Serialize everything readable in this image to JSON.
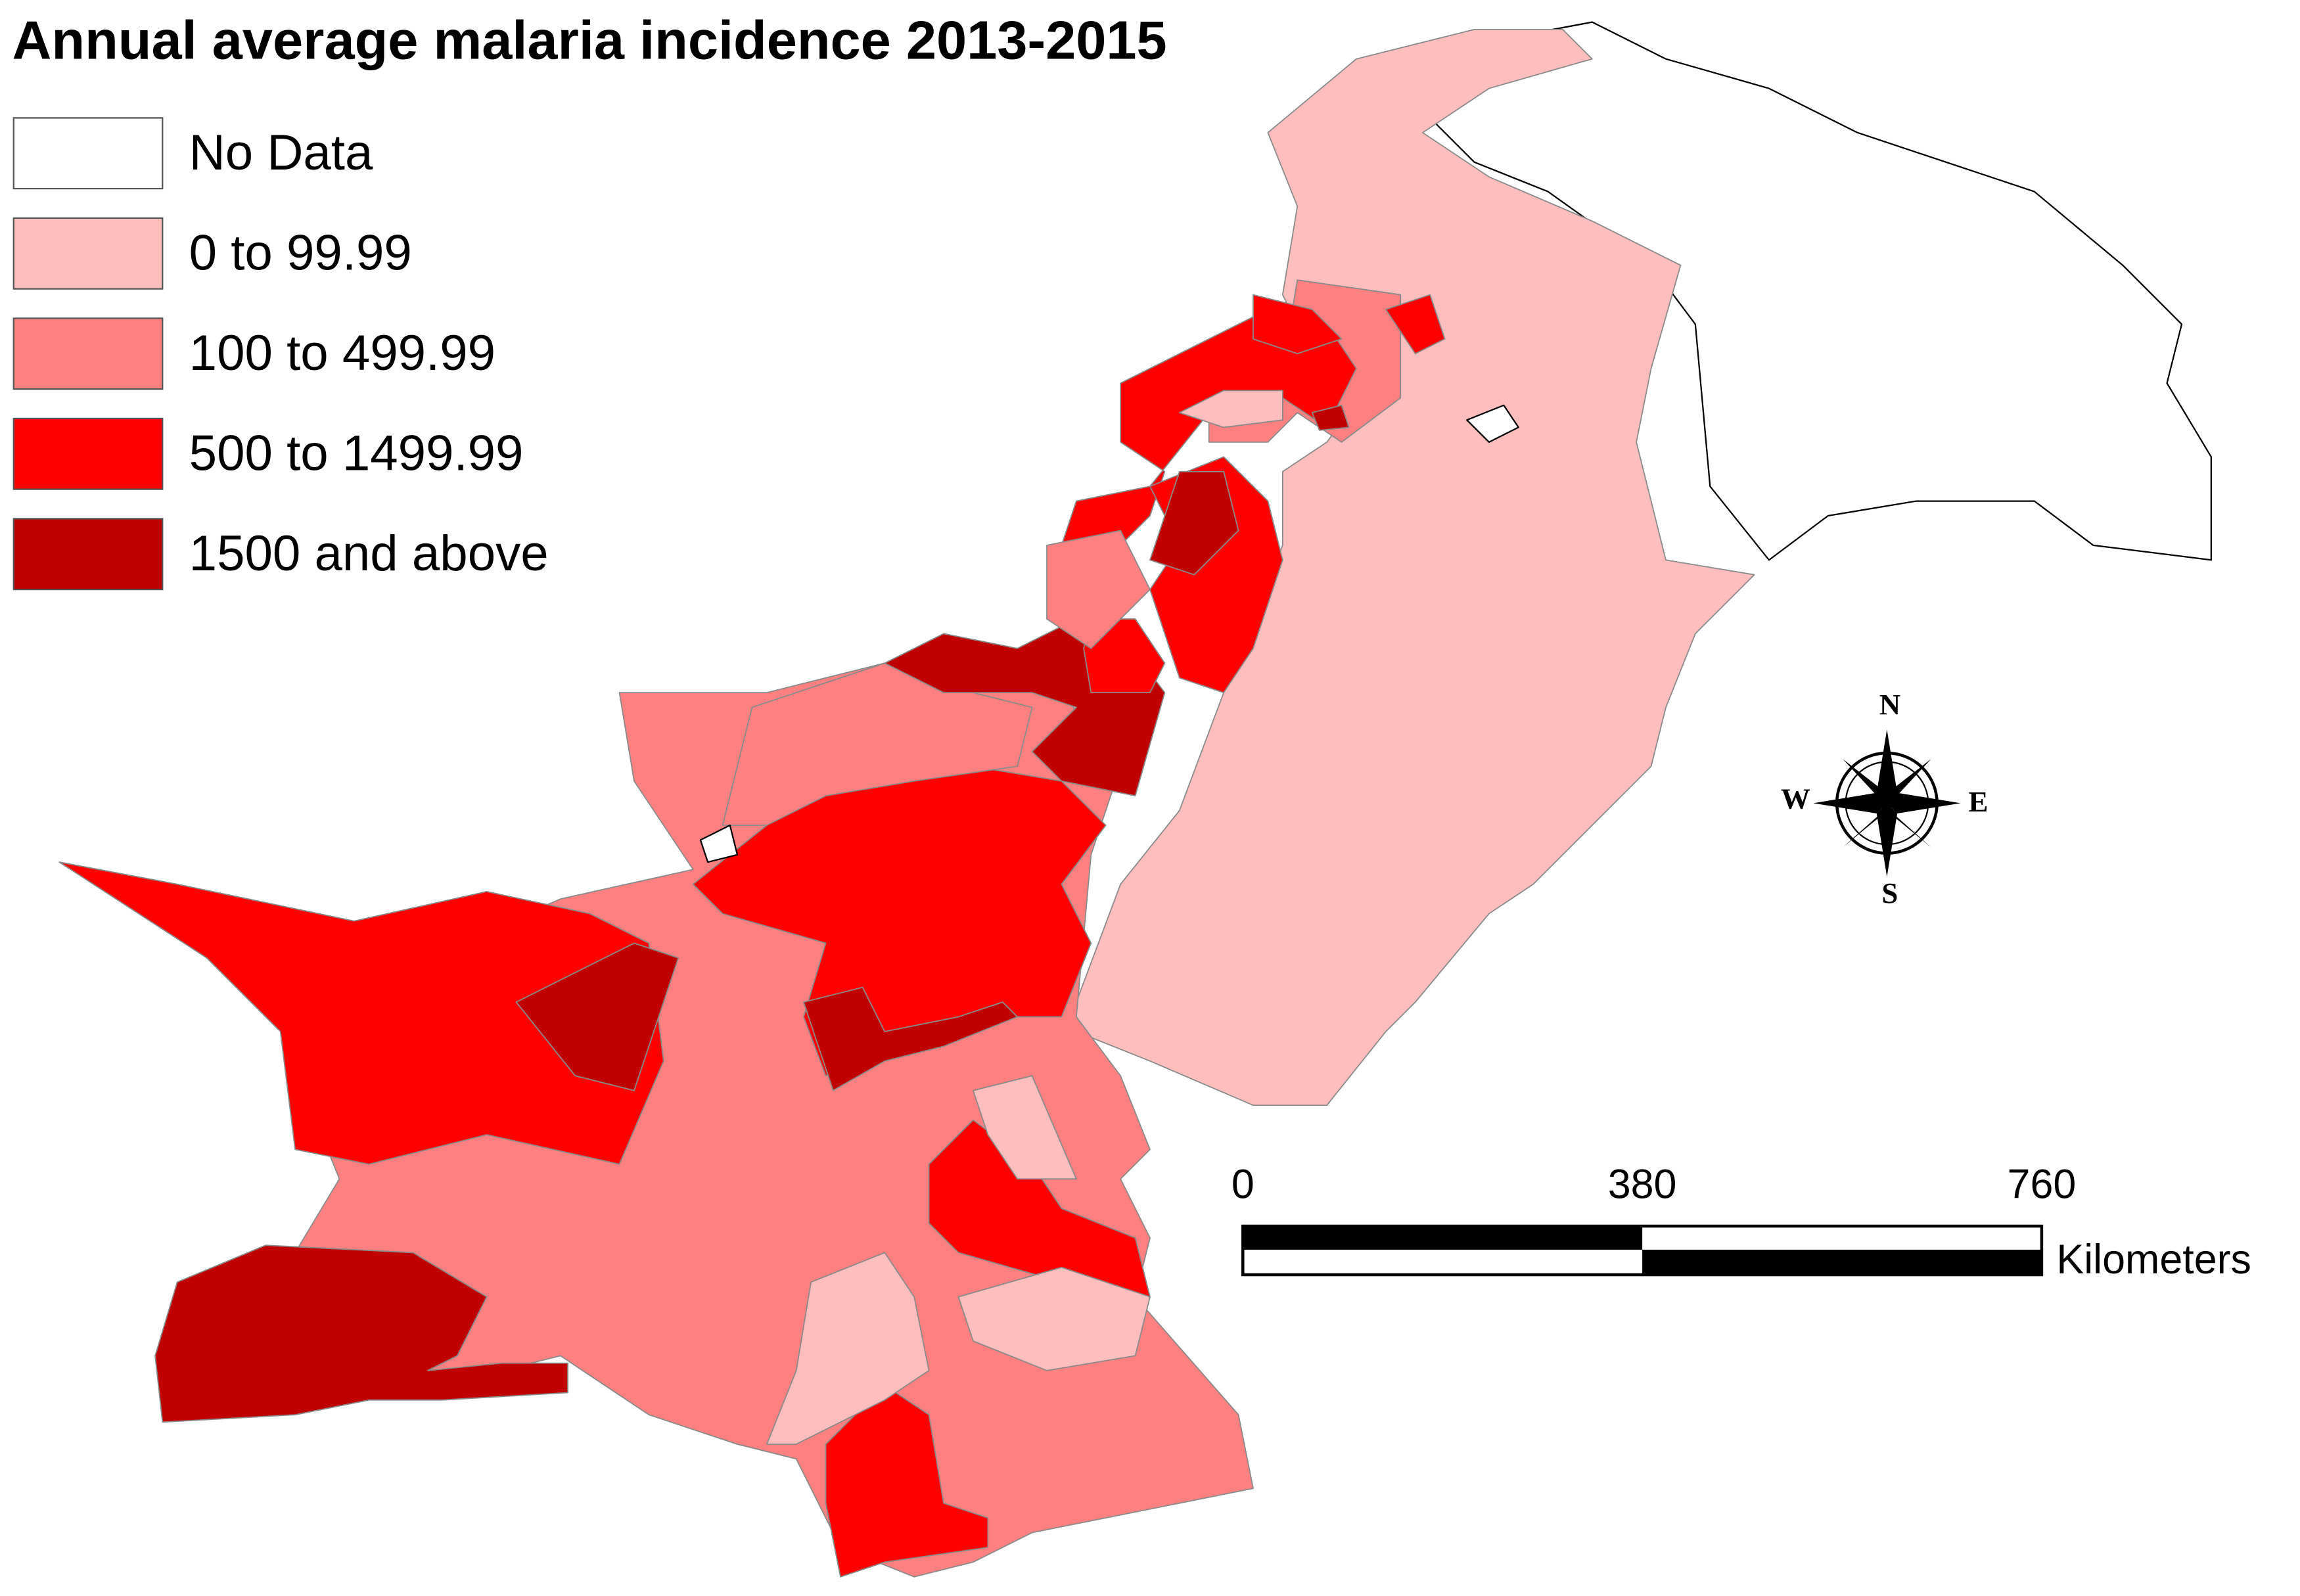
{
  "title": "Annual average malaria incidence 2013-2015",
  "legend": {
    "items": [
      {
        "label": "No Data",
        "color": "#ffffff"
      },
      {
        "label": "0 to 99.99",
        "color": "#ffbebe"
      },
      {
        "label": "100 to 499.99",
        "color": "#ff8080"
      },
      {
        "label": "500 to 1499.99",
        "color": "#ff0000"
      },
      {
        "label": "1500 and above",
        "color": "#c00000"
      }
    ]
  },
  "compass": {
    "north": "N",
    "south": "S",
    "east": "E",
    "west": "W"
  },
  "scale_bar": {
    "ticks": [
      0,
      380,
      760
    ],
    "unit": "Kilometers"
  }
}
